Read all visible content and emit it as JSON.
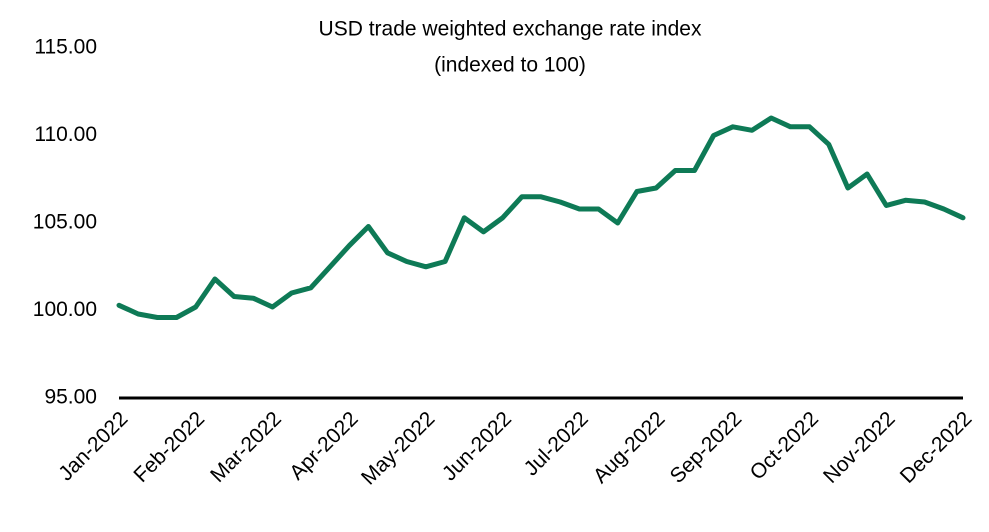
{
  "chart_data": {
    "type": "line",
    "title": "USD trade weighted exchange rate index",
    "subtitle": "(indexed to 100)",
    "categories": [
      "Jan-2022",
      null,
      null,
      null,
      "Feb-2022",
      null,
      null,
      null,
      "Mar-2022",
      null,
      null,
      null,
      "Apr-2022",
      null,
      null,
      null,
      "May-2022",
      null,
      null,
      null,
      "Jun-2022",
      null,
      null,
      null,
      "Jul-2022",
      null,
      null,
      null,
      "Aug-2022",
      null,
      null,
      null,
      "Sep-2022",
      null,
      null,
      null,
      "Oct-2022",
      null,
      null,
      null,
      "Nov-2022",
      null,
      null,
      null,
      "Dec-2022"
    ],
    "series": [
      {
        "name": "USD trade weighted exchange rate index",
        "color": "#0e7a56",
        "values": [
          100.3,
          99.8,
          99.6,
          99.6,
          100.2,
          101.8,
          100.8,
          100.7,
          100.2,
          101.0,
          101.3,
          102.5,
          103.7,
          104.8,
          103.3,
          102.8,
          102.5,
          102.8,
          105.3,
          104.5,
          105.3,
          106.5,
          106.5,
          106.2,
          105.8,
          105.8,
          105.0,
          106.8,
          107.0,
          108.0,
          108.0,
          110.0,
          110.5,
          110.3,
          111.0,
          110.5,
          110.5,
          109.5,
          107.0,
          107.8,
          106.0,
          106.3,
          106.2,
          105.8,
          105.3
        ]
      }
    ],
    "ylim": [
      95,
      115
    ],
    "yticks": [
      {
        "value": 95,
        "label": "95.00"
      },
      {
        "value": 100,
        "label": "100.00"
      },
      {
        "value": 105,
        "label": "105.00"
      },
      {
        "value": 110,
        "label": "110.00"
      },
      {
        "value": 115,
        "label": "115.00"
      }
    ],
    "grid": false
  }
}
